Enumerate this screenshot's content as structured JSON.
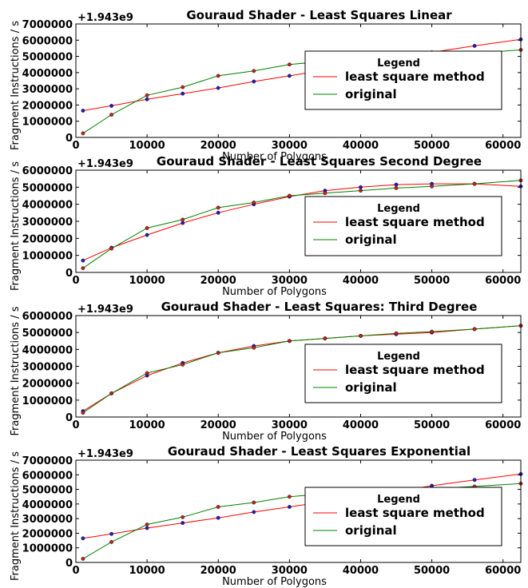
{
  "chart_data": [
    {
      "type": "line",
      "title": "Gouraud Shader - Least Squares Linear",
      "offset_text": "+1.943e9",
      "xlabel": "Number of Polygons",
      "ylabel": "Fragment Instructions / s",
      "xlim": [
        0,
        62500
      ],
      "ylim": [
        0,
        7000000
      ],
      "xticks": [
        0,
        10000,
        20000,
        30000,
        40000,
        50000,
        60000
      ],
      "yticks": [
        0,
        1000000,
        2000000,
        3000000,
        4000000,
        5000000,
        6000000,
        7000000
      ],
      "grid": false,
      "legend": {
        "title": "Legend",
        "placement": "center-right"
      },
      "x": [
        1000,
        5000,
        10000,
        15000,
        20000,
        25000,
        30000,
        35000,
        40000,
        45000,
        50000,
        56000,
        62500
      ],
      "series": [
        {
          "name": "least square method",
          "color": "#ff0000",
          "values": [
            1650000,
            1950000,
            2350000,
            2700000,
            3050000,
            3450000,
            3800000,
            4150000,
            4500000,
            4850000,
            5250000,
            5650000,
            6050000
          ]
        },
        {
          "name": "original",
          "color": "#008000",
          "values": [
            250000,
            1400000,
            2600000,
            3100000,
            3800000,
            4100000,
            4500000,
            4700000,
            4800000,
            4950000,
            5050000,
            5200000,
            5400000
          ]
        }
      ]
    },
    {
      "type": "line",
      "title": "Gouraud Shader - Least Squares Second Degree",
      "offset_text": "+1.943e9",
      "xlabel": "Number of Polygons",
      "ylabel": "Fragment Instructions / s",
      "xlim": [
        0,
        62500
      ],
      "ylim": [
        0,
        6000000
      ],
      "xticks": [
        0,
        10000,
        20000,
        30000,
        40000,
        50000,
        60000
      ],
      "yticks": [
        0,
        1000000,
        2000000,
        3000000,
        4000000,
        5000000,
        6000000
      ],
      "grid": false,
      "legend": {
        "title": "Legend",
        "placement": "center-right"
      },
      "x": [
        1000,
        5000,
        10000,
        15000,
        20000,
        25000,
        30000,
        35000,
        40000,
        45000,
        50000,
        56000,
        62500
      ],
      "series": [
        {
          "name": "least square method",
          "color": "#ff0000",
          "values": [
            700000,
            1450000,
            2200000,
            2900000,
            3500000,
            4000000,
            4450000,
            4800000,
            5000000,
            5150000,
            5200000,
            5200000,
            5050000
          ]
        },
        {
          "name": "original",
          "color": "#008000",
          "values": [
            250000,
            1400000,
            2600000,
            3100000,
            3800000,
            4100000,
            4500000,
            4650000,
            4800000,
            4950000,
            5050000,
            5200000,
            5400000
          ]
        }
      ]
    },
    {
      "type": "line",
      "title": "Gouraud Shader - Least Squares: Third Degree",
      "offset_text": "+1.943e9",
      "xlabel": "Number of Polygons",
      "ylabel": "Fragment Instructions / s",
      "xlim": [
        0,
        62500
      ],
      "ylim": [
        0,
        6000000
      ],
      "xticks": [
        0,
        10000,
        20000,
        30000,
        40000,
        50000,
        60000
      ],
      "yticks": [
        0,
        1000000,
        2000000,
        3000000,
        4000000,
        5000000,
        6000000
      ],
      "grid": false,
      "legend": {
        "title": "Legend",
        "placement": "center-right"
      },
      "x": [
        1000,
        5000,
        10000,
        15000,
        20000,
        25000,
        30000,
        35000,
        40000,
        45000,
        50000,
        56000,
        62500
      ],
      "series": [
        {
          "name": "least square method",
          "color": "#ff0000",
          "values": [
            350000,
            1400000,
            2450000,
            3200000,
            3800000,
            4200000,
            4500000,
            4650000,
            4800000,
            4900000,
            5000000,
            5200000,
            5400000
          ]
        },
        {
          "name": "original",
          "color": "#008000",
          "values": [
            250000,
            1400000,
            2600000,
            3100000,
            3800000,
            4100000,
            4500000,
            4650000,
            4800000,
            4950000,
            5050000,
            5200000,
            5400000
          ]
        }
      ]
    },
    {
      "type": "line",
      "title": "Gouraud Shader - Least Squares Exponential",
      "offset_text": "+1.943e9",
      "xlabel": "Number of Polygons",
      "ylabel": "Fragment Instructions / s",
      "xlim": [
        0,
        62500
      ],
      "ylim": [
        0,
        7000000
      ],
      "xticks": [
        0,
        10000,
        20000,
        30000,
        40000,
        50000,
        60000
      ],
      "yticks": [
        0,
        1000000,
        2000000,
        3000000,
        4000000,
        5000000,
        6000000,
        7000000
      ],
      "grid": false,
      "legend": {
        "title": "Legend",
        "placement": "center-right"
      },
      "x": [
        1000,
        5000,
        10000,
        15000,
        20000,
        25000,
        30000,
        35000,
        40000,
        45000,
        50000,
        56000,
        62500
      ],
      "series": [
        {
          "name": "least square method",
          "color": "#ff0000",
          "values": [
            1650000,
            1950000,
            2350000,
            2700000,
            3050000,
            3450000,
            3800000,
            4150000,
            4500000,
            4850000,
            5250000,
            5650000,
            6050000
          ]
        },
        {
          "name": "original",
          "color": "#008000",
          "values": [
            250000,
            1400000,
            2600000,
            3100000,
            3800000,
            4100000,
            4500000,
            4700000,
            4800000,
            4950000,
            5050000,
            5200000,
            5400000
          ]
        }
      ]
    }
  ]
}
